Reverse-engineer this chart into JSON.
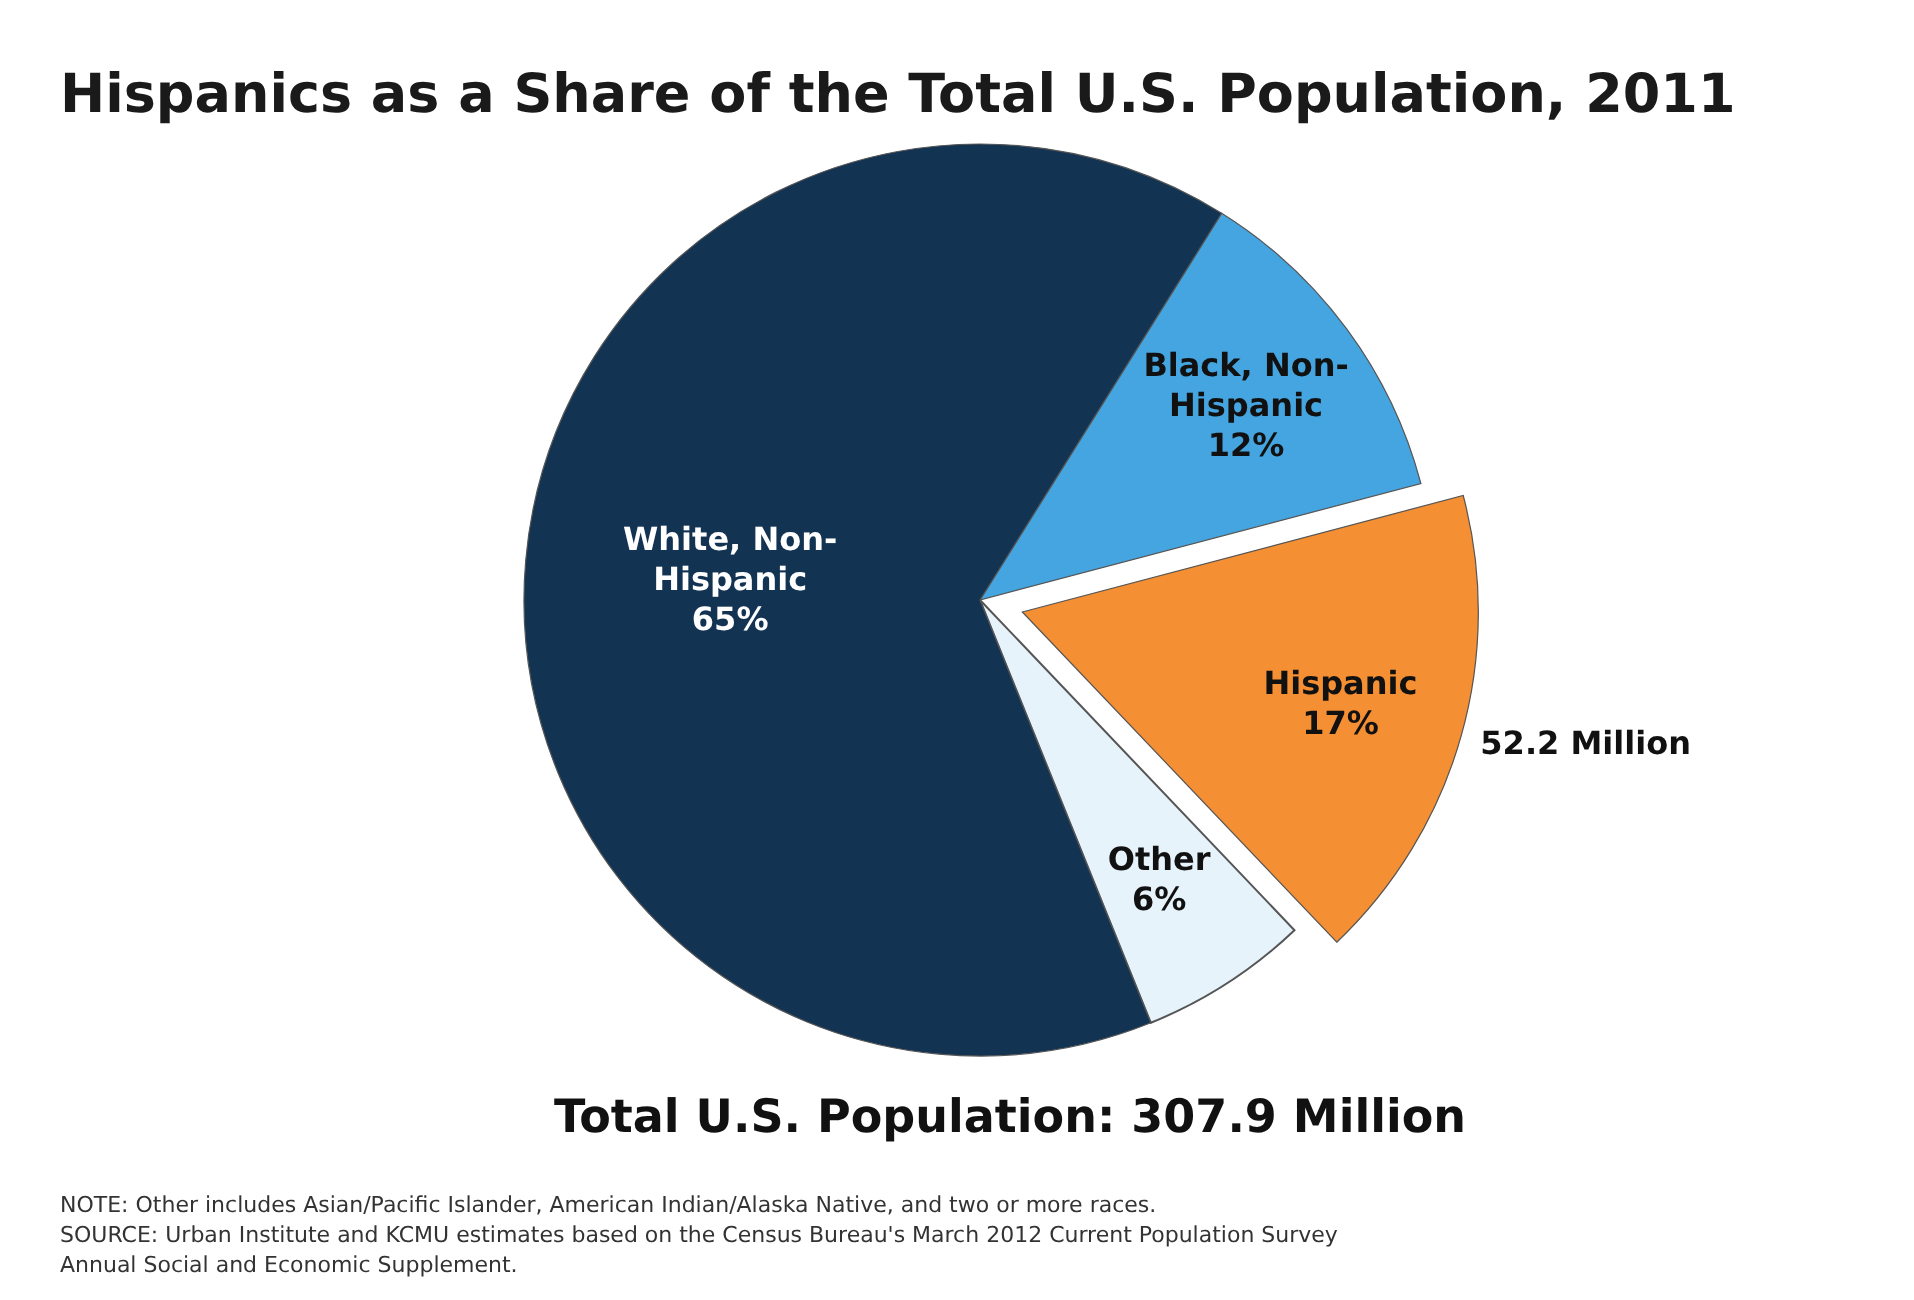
{
  "chart_data": {
    "type": "pie",
    "title": "Hispanics as a Share of the Total U.S. Population, 2011",
    "subtitle": "Total U.S. Population: 307.9 Million",
    "categories": [
      "Black, Non-Hispanic",
      "Hispanic",
      "Other",
      "White, Non-Hispanic"
    ],
    "values": [
      12,
      17,
      6,
      65
    ],
    "colors": [
      "#45a5e0",
      "#f58f33",
      "#e6f3fb",
      "#133353"
    ],
    "value_labels": [
      "12%",
      "17%",
      "6%",
      "65%"
    ],
    "annotations": [
      {
        "text": "52.2 Million",
        "x": "Hispanic"
      },
      "NOTE: Other includes Asian/Pacific Islander, American Indian/Alaska Native, and two or more races.",
      "SOURCE: Urban Institute and KCMU estimates based on the Census Bureau's March 2012 Current Population Survey Annual Social and Economic Supplement."
    ]
  }
}
